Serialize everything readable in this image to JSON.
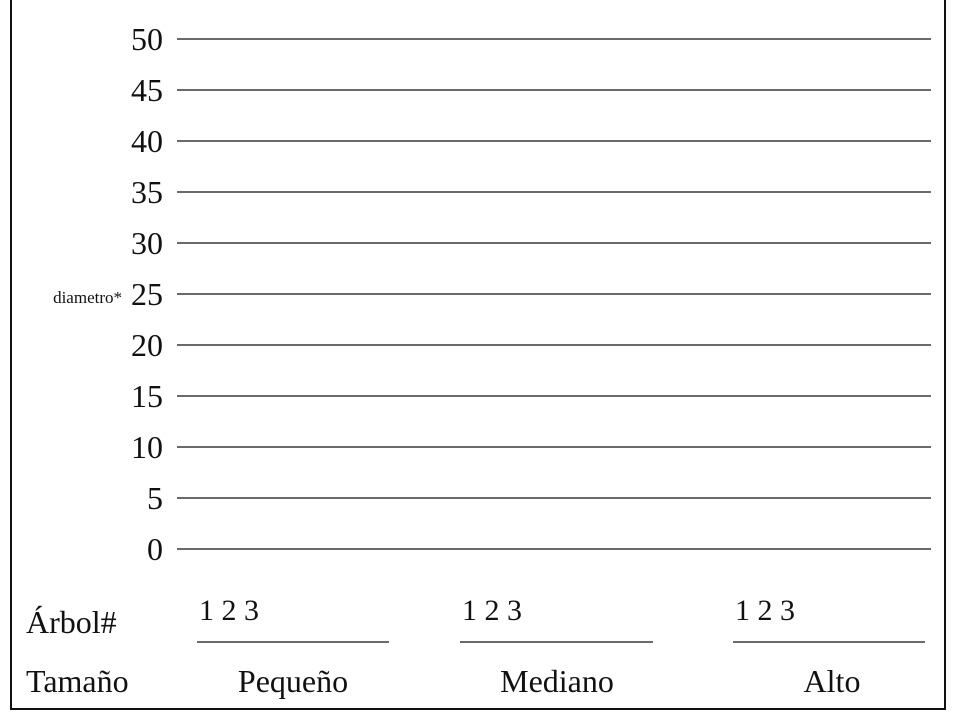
{
  "chart_data": {
    "type": "bar",
    "ylabel": "diametro*",
    "yticks": [
      "0",
      "5",
      "10",
      "15",
      "20",
      "25",
      "30",
      "35",
      "40",
      "45",
      "50"
    ],
    "ylim": [
      0,
      50
    ],
    "grid": true,
    "row_labels": {
      "tree": "Árbol#",
      "size": "Tamaño"
    },
    "groups": [
      {
        "name": "Pequeño",
        "trees": "1 2 3",
        "categories": [
          "1",
          "2",
          "3"
        ],
        "values": [
          null,
          null,
          null
        ]
      },
      {
        "name": "Mediano",
        "trees": "1 2 3",
        "categories": [
          "1",
          "2",
          "3"
        ],
        "values": [
          null,
          null,
          null
        ]
      },
      {
        "name": "Alto",
        "trees": "1 2 3",
        "categories": [
          "1",
          "2",
          "3"
        ],
        "values": [
          null,
          null,
          null
        ]
      }
    ]
  },
  "colors": {
    "line": "#111111"
  }
}
